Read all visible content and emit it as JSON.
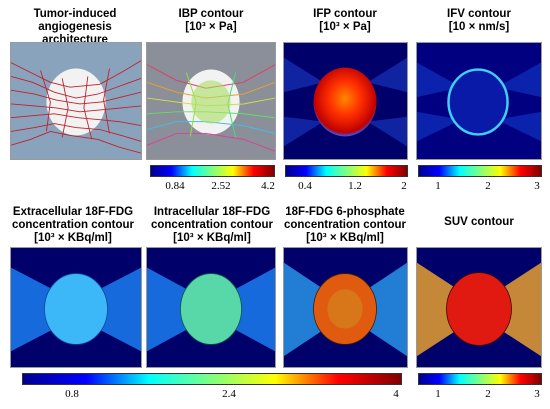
{
  "panels": {
    "tumor": {
      "title_l1": "Tumor-induced",
      "title_l2": "angiogenesis architecture"
    },
    "ibp": {
      "title_l1": "IBP contour",
      "title_l2": "[10³ × Pa]",
      "ticks": [
        "0.84",
        "2.52",
        "4.2"
      ]
    },
    "ifp": {
      "title_l1": "IFP contour",
      "title_l2": "[10³ × Pa]",
      "ticks": [
        "0.4",
        "1.2",
        "2"
      ]
    },
    "ifv": {
      "title_l1": "IFV contour",
      "title_l2": "[10 × nm/s]",
      "ticks": [
        "1",
        "2",
        "3"
      ]
    },
    "extra": {
      "title_l1": "Extracellular 18F-FDG",
      "title_l2": "concentration contour",
      "title_l3": "[10³ × KBq/ml]"
    },
    "intra": {
      "title_l1": "Intracellular 18F-FDG",
      "title_l2": "concentration contour",
      "title_l3": "[10³ × KBq/ml]"
    },
    "phos": {
      "title_l1": "18F-FDG 6-phosphate",
      "title_l2": "concentration contour",
      "title_l3": "[10³ × KBq/ml]"
    },
    "suv": {
      "title_l1": "SUV contour",
      "ticks": [
        "1",
        "2",
        "3"
      ]
    }
  },
  "shared_colorbar": {
    "ticks": [
      "0.8",
      "2.4",
      "4"
    ]
  },
  "colors": {
    "vessel_red": "#c0202a",
    "tissue_gray": "#8aa3bd",
    "colormap": "jet"
  }
}
